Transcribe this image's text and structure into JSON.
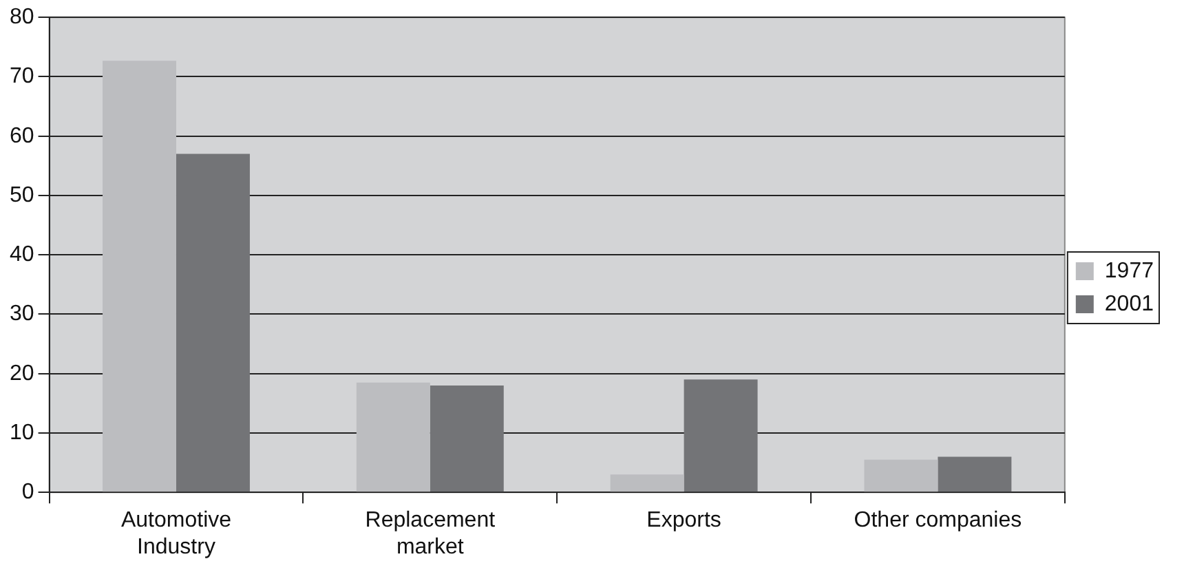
{
  "chart_data": {
    "type": "bar",
    "categories": [
      "Automotive\nIndustry",
      "Replacement\nmarket",
      "Exports",
      "Other companies"
    ],
    "series": [
      {
        "name": "1977",
        "color": "#bcbdc0",
        "values": [
          72.7,
          18.5,
          3,
          5.5
        ]
      },
      {
        "name": "2001",
        "color": "#737477",
        "values": [
          57,
          18,
          19,
          6
        ]
      }
    ],
    "ylim": [
      0,
      80
    ],
    "yticks": [
      0,
      10,
      20,
      30,
      40,
      50,
      60,
      70,
      80
    ],
    "grid": "y",
    "legend": "right"
  }
}
